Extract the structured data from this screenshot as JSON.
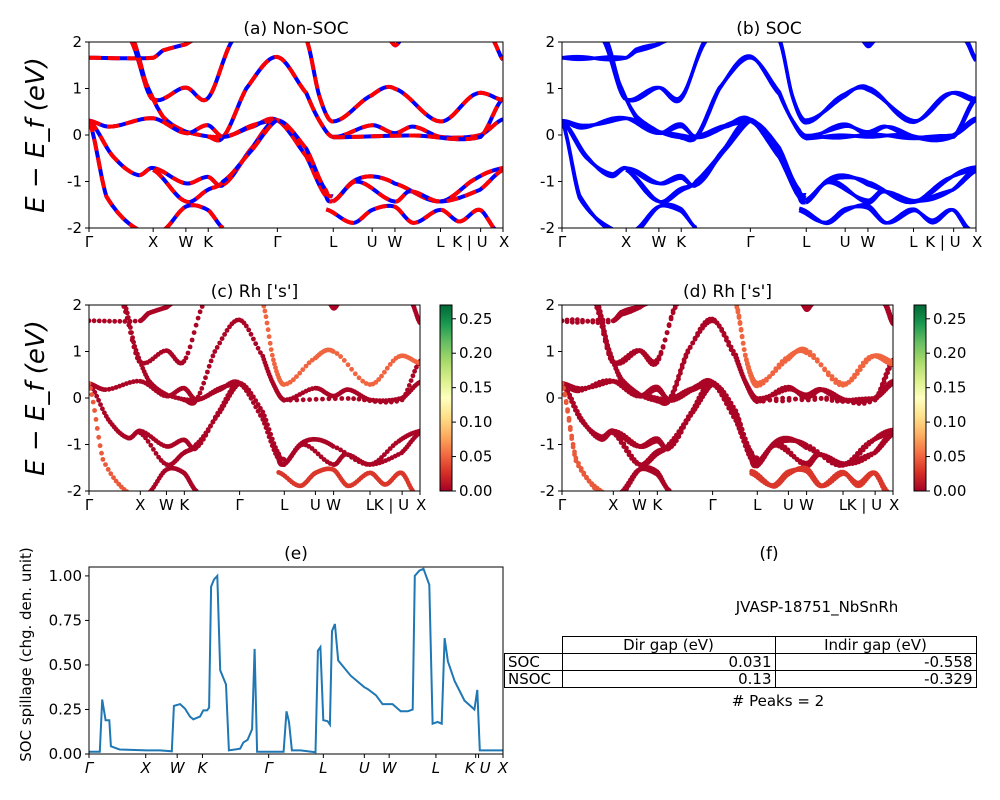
{
  "chart_data": [
    {
      "id": "a",
      "type": "line",
      "title": "(a) Non-SOC",
      "ylabel": "E − E_f (eV)",
      "ylim": [
        -2,
        2
      ],
      "yticks": [
        -2,
        -1,
        0,
        1,
        2
      ],
      "xticks": [
        {
          "k": 0,
          "label": "Γ"
        },
        {
          "k": 0.155,
          "label": "X"
        },
        {
          "k": 0.234,
          "label": "W"
        },
        {
          "k": 0.288,
          "label": "K"
        },
        {
          "k": 0.455,
          "label": "Γ"
        },
        {
          "k": 0.59,
          "label": "L"
        },
        {
          "k": 0.684,
          "label": "U"
        },
        {
          "k": 0.739,
          "label": "W"
        },
        {
          "k": 0.849,
          "label": "L"
        },
        {
          "k": 0.946,
          "label": "K | U"
        },
        {
          "k": 1,
          "label": "X"
        }
      ],
      "styles": {
        "line_color": "#0000ff",
        "dash_color": "#ff0000"
      },
      "bands_ref": "bands"
    },
    {
      "id": "b",
      "type": "line",
      "title": "(b) SOC",
      "ylim": [
        -2,
        2
      ],
      "yticks": [
        -2,
        -1,
        0,
        1,
        2
      ],
      "xticks_ref": "a",
      "styles": {
        "line_color": "#0000ff"
      },
      "spin_split_eV": 0.06,
      "bands_ref": "bands"
    },
    {
      "id": "c",
      "type": "scatter",
      "title": "(c)  Rh ['s']",
      "ylabel": "E − E_f (eV)",
      "ylim": [
        -2,
        2
      ],
      "yticks": [
        -2,
        -1,
        0,
        1,
        2
      ],
      "xticks_ref": "a",
      "colormap": "RdYlGn",
      "colorbar": {
        "range": [
          0,
          0.27
        ],
        "ticks": [
          "0.00",
          "0.05",
          "0.10",
          "0.15",
          "0.20",
          "0.25"
        ]
      },
      "bands_ref": "bands"
    },
    {
      "id": "d",
      "type": "scatter",
      "title": "(d) Rh ['s']",
      "ylim": [
        -2,
        2
      ],
      "yticks": [
        -2,
        -1,
        0,
        1,
        2
      ],
      "xticks_ref": "a",
      "colormap": "RdYlGn",
      "colorbar": {
        "range": [
          0,
          0.27
        ],
        "ticks": [
          "0.00",
          "0.05",
          "0.10",
          "0.15",
          "0.20",
          "0.25"
        ]
      },
      "spin_split_eV": 0.06,
      "bands_ref": "bands"
    },
    {
      "id": "e",
      "type": "line",
      "title": "(e)",
      "ylabel": "SOC spillage (chg. den. unit)",
      "ylim": [
        0,
        1.05
      ],
      "yticks": [
        "0.00",
        "0.25",
        "0.50",
        "0.75",
        "1.00"
      ],
      "color": "#1f77b4",
      "xticks": [
        {
          "k": 0,
          "label": "Γ"
        },
        {
          "k": 0.137,
          "label": "X"
        },
        {
          "k": 0.213,
          "label": "W"
        },
        {
          "k": 0.274,
          "label": "K"
        },
        {
          "k": 0.434,
          "label": "Γ"
        },
        {
          "k": 0.566,
          "label": "L"
        },
        {
          "k": 0.665,
          "label": "U"
        },
        {
          "k": 0.725,
          "label": "W"
        },
        {
          "k": 0.838,
          "label": "L"
        },
        {
          "k": 0.934,
          "label": "K"
        },
        {
          "k": 0.941,
          "label": "U"
        },
        {
          "k": 1,
          "label": "X"
        }
      ],
      "points": [
        [
          0,
          0.013
        ],
        [
          0.026,
          0.013
        ],
        [
          0.032,
          0.306
        ],
        [
          0.04,
          0.19
        ],
        [
          0.049,
          0.19
        ],
        [
          0.053,
          0.043
        ],
        [
          0.074,
          0.025
        ],
        [
          0.139,
          0.02
        ],
        [
          0.171,
          0.02
        ],
        [
          0.2,
          0.015
        ],
        [
          0.205,
          0.27
        ],
        [
          0.22,
          0.28
        ],
        [
          0.232,
          0.255
        ],
        [
          0.244,
          0.21
        ],
        [
          0.252,
          0.195
        ],
        [
          0.268,
          0.21
        ],
        [
          0.276,
          0.245
        ],
        [
          0.285,
          0.245
        ],
        [
          0.29,
          0.26
        ],
        [
          0.295,
          0.94
        ],
        [
          0.302,
          0.98
        ],
        [
          0.31,
          1.0
        ],
        [
          0.317,
          0.47
        ],
        [
          0.331,
          0.39
        ],
        [
          0.338,
          0.02
        ],
        [
          0.365,
          0.03
        ],
        [
          0.373,
          0.065
        ],
        [
          0.383,
          0.08
        ],
        [
          0.394,
          0.14
        ],
        [
          0.4,
          0.59
        ],
        [
          0.406,
          0.013
        ],
        [
          0.47,
          0.013
        ],
        [
          0.477,
          0.24
        ],
        [
          0.483,
          0.18
        ],
        [
          0.49,
          0.02
        ],
        [
          0.511,
          0.02
        ],
        [
          0.547,
          0.01
        ],
        [
          0.553,
          0.58
        ],
        [
          0.559,
          0.6
        ],
        [
          0.566,
          0.19
        ],
        [
          0.576,
          0.185
        ],
        [
          0.582,
          0.165
        ],
        [
          0.587,
          0.69
        ],
        [
          0.594,
          0.73
        ],
        [
          0.602,
          0.525
        ],
        [
          0.632,
          0.44
        ],
        [
          0.665,
          0.375
        ],
        [
          0.673,
          0.365
        ],
        [
          0.693,
          0.33
        ],
        [
          0.709,
          0.28
        ],
        [
          0.733,
          0.28
        ],
        [
          0.753,
          0.24
        ],
        [
          0.77,
          0.24
        ],
        [
          0.782,
          0.25
        ],
        [
          0.787,
          1.0
        ],
        [
          0.798,
          1.03
        ],
        [
          0.808,
          1.04
        ],
        [
          0.822,
          0.95
        ],
        [
          0.83,
          0.17
        ],
        [
          0.842,
          0.18
        ],
        [
          0.852,
          0.17
        ],
        [
          0.859,
          0.65
        ],
        [
          0.867,
          0.52
        ],
        [
          0.883,
          0.41
        ],
        [
          0.907,
          0.3
        ],
        [
          0.931,
          0.25
        ],
        [
          0.938,
          0.36
        ],
        [
          0.944,
          0.02
        ],
        [
          1,
          0.02
        ]
      ]
    },
    {
      "id": "f",
      "type": "table",
      "title": "(f)",
      "material": "JVASP-18751_NbSnRh",
      "columns": [
        "",
        "Dir gap (eV)",
        "Indir gap (eV)"
      ],
      "rows": [
        [
          "SOC",
          "0.031",
          "-0.558"
        ],
        [
          "NSOC",
          "0.13",
          "-0.329"
        ]
      ],
      "footer": "# Peaks = 2"
    }
  ],
  "bands": [
    {
      "w": 0.003,
      "pts": [
        [
          0,
          1.66
        ],
        [
          0.155,
          1.66
        ],
        [
          0.179,
          1.82
        ],
        [
          0.234,
          1.95
        ],
        [
          0.255,
          2.05
        ]
      ]
    },
    {
      "w": 0.003,
      "pts": [
        [
          0.1,
          2.05
        ],
        [
          0.151,
          0.79
        ],
        [
          0.234,
          1.02
        ],
        [
          0.287,
          0.79
        ],
        [
          0.348,
          2.05
        ]
      ]
    },
    {
      "w": 0.003,
      "pts": [
        [
          0.106,
          2.05
        ],
        [
          0.138,
          1.11
        ],
        [
          0.179,
          0.39
        ],
        [
          0.234,
          0.07
        ],
        [
          0.324,
          -0.04
        ],
        [
          0.396,
          0.18
        ],
        [
          0.454,
          0.32
        ],
        [
          0.525,
          -0.46
        ],
        [
          0.573,
          -1.32
        ],
        [
          0.589,
          -1.43
        ]
      ]
    },
    {
      "w": 0.003,
      "pts": [
        [
          0.287,
          -0.04
        ],
        [
          0.324,
          -0.04
        ],
        [
          0.38,
          1.0
        ],
        [
          0.454,
          1.68
        ],
        [
          0.525,
          0.9
        ],
        [
          0.557,
          0.3
        ],
        [
          0.589,
          -0.04
        ],
        [
          0.684,
          0.21
        ],
        [
          0.738,
          0.04
        ],
        [
          0.783,
          0.18
        ],
        [
          0.849,
          -0.04
        ],
        [
          0.946,
          0.0
        ],
        [
          1,
          0.34
        ]
      ]
    },
    {
      "w": 0.003,
      "pts": [
        [
          0,
          0.31
        ],
        [
          0.05,
          0.18
        ],
        [
          0.155,
          0.36
        ],
        [
          0.234,
          0.04
        ],
        [
          0.287,
          0.21
        ],
        [
          0.324,
          -0.04
        ],
        [
          0.396,
          0.21
        ],
        [
          0.454,
          0.32
        ]
      ]
    },
    {
      "w": 0.003,
      "pts": [
        [
          0.589,
          -0.05
        ],
        [
          0.783,
          -0.01
        ],
        [
          0.946,
          -0.04
        ],
        [
          1,
          0.79
        ]
      ]
    },
    {
      "w": 0.003,
      "pts": [
        [
          0,
          0.31
        ],
        [
          0.058,
          -0.46
        ],
        [
          0.118,
          -0.86
        ],
        [
          0.155,
          -0.71
        ],
        [
          0.234,
          -1.04
        ],
        [
          0.287,
          -0.9
        ],
        [
          0.324,
          -1.07
        ],
        [
          0.396,
          -0.25
        ],
        [
          0.454,
          0.32
        ],
        [
          0.525,
          -0.3
        ],
        [
          0.573,
          -1.2
        ],
        [
          0.589,
          -1.32
        ]
      ]
    },
    {
      "w": 0.045,
      "pts": [
        [
          0,
          0.31
        ],
        [
          0.042,
          -1.32
        ],
        [
          0.122,
          -2.05
        ]
      ]
    },
    {
      "w": 0.003,
      "pts": [
        [
          0.155,
          -0.75
        ],
        [
          0.234,
          -1.43
        ],
        [
          0.287,
          -1.18
        ],
        [
          0.324,
          -1.0
        ],
        [
          0.396,
          -0.3
        ],
        [
          0.454,
          0.32
        ]
      ]
    },
    {
      "w": 0.003,
      "pts": [
        [
          0.589,
          -1.43
        ],
        [
          0.638,
          -1.0
        ],
        [
          0.684,
          -0.89
        ],
        [
          0.738,
          -1.04
        ],
        [
          0.849,
          -1.43
        ],
        [
          0.936,
          -0.93
        ],
        [
          1,
          -0.71
        ]
      ]
    },
    {
      "w": 0.003,
      "pts": [
        [
          0.589,
          -1.43
        ],
        [
          0.646,
          -1.0
        ],
        [
          0.738,
          -1.43
        ],
        [
          0.775,
          -1.21
        ],
        [
          0.849,
          -1.43
        ],
        [
          0.944,
          -1.18
        ],
        [
          1,
          -0.75
        ]
      ]
    },
    {
      "w": 0.03,
      "pts": [
        [
          0.573,
          -1.6
        ],
        [
          0.638,
          -1.89
        ],
        [
          0.684,
          -1.61
        ],
        [
          0.738,
          -1.54
        ],
        [
          0.783,
          -1.89
        ],
        [
          0.849,
          -1.61
        ],
        [
          0.895,
          -1.86
        ],
        [
          0.944,
          -1.61
        ],
        [
          0.984,
          -2.05
        ]
      ]
    },
    {
      "w": 0.003,
      "pts": [
        [
          0.179,
          -2.05
        ],
        [
          0.234,
          -1.54
        ],
        [
          0.287,
          -1.61
        ],
        [
          0.324,
          -2.0
        ]
      ]
    },
    {
      "w": 0.05,
      "pts": [
        [
          0.525,
          2.05
        ],
        [
          0.557,
          0.82
        ],
        [
          0.589,
          0.29
        ],
        [
          0.684,
          0.86
        ],
        [
          0.738,
          1.0
        ],
        [
          0.849,
          0.29
        ],
        [
          0.936,
          0.89
        ],
        [
          1,
          0.75
        ]
      ]
    },
    {
      "w": 0.003,
      "pts": [
        [
          0.725,
          2.05
        ],
        [
          0.74,
          1.93
        ],
        [
          0.755,
          2.05
        ]
      ]
    },
    {
      "w": 0.003,
      "pts": [
        [
          0.975,
          2.05
        ],
        [
          1,
          1.62
        ]
      ]
    }
  ]
}
